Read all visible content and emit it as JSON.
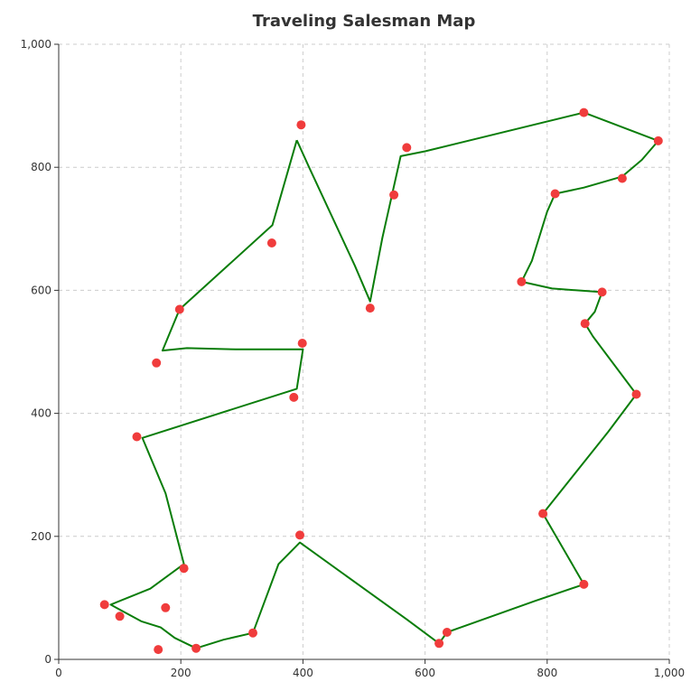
{
  "chart_data": {
    "type": "scatter",
    "title": "Traveling Salesman Map",
    "xlabel": "",
    "ylabel": "",
    "xlim": [
      0,
      1000
    ],
    "ylim": [
      0,
      1000
    ],
    "x_ticks": [
      0,
      200,
      400,
      600,
      800,
      1000
    ],
    "y_ticks": [
      0,
      200,
      400,
      600,
      800,
      1000
    ],
    "x_tick_labels": [
      "0",
      "200",
      "400",
      "600",
      "800",
      "1,000"
    ],
    "y_tick_labels": [
      "0",
      "200",
      "400",
      "600",
      "800",
      "1,000"
    ],
    "grid": true,
    "point_color": "#f03c3c",
    "line_color": "#0a7d0a",
    "series": [
      {
        "type": "scatter",
        "points": [
          [
            397,
            869
          ],
          [
            570,
            832
          ],
          [
            860,
            889
          ],
          [
            982,
            843
          ],
          [
            923,
            782
          ],
          [
            813,
            757
          ],
          [
            549,
            755
          ],
          [
            349,
            677
          ],
          [
            198,
            569
          ],
          [
            510,
            571
          ],
          [
            758,
            614
          ],
          [
            890,
            597
          ],
          [
            862,
            546
          ],
          [
            399,
            514
          ],
          [
            160,
            482
          ],
          [
            385,
            426
          ],
          [
            946,
            431
          ],
          [
            128,
            362
          ],
          [
            793,
            237
          ],
          [
            395,
            202
          ],
          [
            205,
            148
          ],
          [
            860,
            122
          ],
          [
            75,
            89
          ],
          [
            175,
            84
          ],
          [
            100,
            70
          ],
          [
            318,
            43
          ],
          [
            636,
            44
          ],
          [
            623,
            26
          ],
          [
            225,
            18
          ],
          [
            163,
            16
          ]
        ]
      },
      {
        "type": "line",
        "points": [
          [
            390,
            844
          ],
          [
            410,
            800
          ],
          [
            485,
            640
          ],
          [
            510,
            582
          ],
          [
            530,
            685
          ],
          [
            560,
            818
          ],
          [
            600,
            826
          ],
          [
            860,
            889
          ],
          [
            982,
            843
          ],
          [
            955,
            812
          ],
          [
            923,
            785
          ],
          [
            860,
            767
          ],
          [
            813,
            757
          ],
          [
            800,
            728
          ],
          [
            775,
            648
          ],
          [
            758,
            614
          ],
          [
            808,
            603
          ],
          [
            890,
            597
          ],
          [
            878,
            565
          ],
          [
            862,
            546
          ],
          [
            875,
            525
          ],
          [
            946,
            431
          ],
          [
            900,
            370
          ],
          [
            793,
            237
          ],
          [
            860,
            122
          ],
          [
            780,
            95
          ],
          [
            636,
            44
          ],
          [
            623,
            26
          ],
          [
            570,
            65
          ],
          [
            395,
            190
          ],
          [
            360,
            155
          ],
          [
            318,
            43
          ],
          [
            270,
            32
          ],
          [
            225,
            18
          ],
          [
            190,
            35
          ],
          [
            167,
            52
          ],
          [
            135,
            62
          ],
          [
            85,
            89
          ],
          [
            150,
            115
          ],
          [
            205,
            155
          ],
          [
            175,
            270
          ],
          [
            137,
            360
          ],
          [
            390,
            440
          ],
          [
            400,
            504
          ],
          [
            290,
            504
          ],
          [
            210,
            506
          ],
          [
            170,
            502
          ],
          [
            198,
            569
          ],
          [
            260,
            625
          ],
          [
            350,
            706
          ],
          [
            390,
            844
          ]
        ]
      }
    ]
  }
}
